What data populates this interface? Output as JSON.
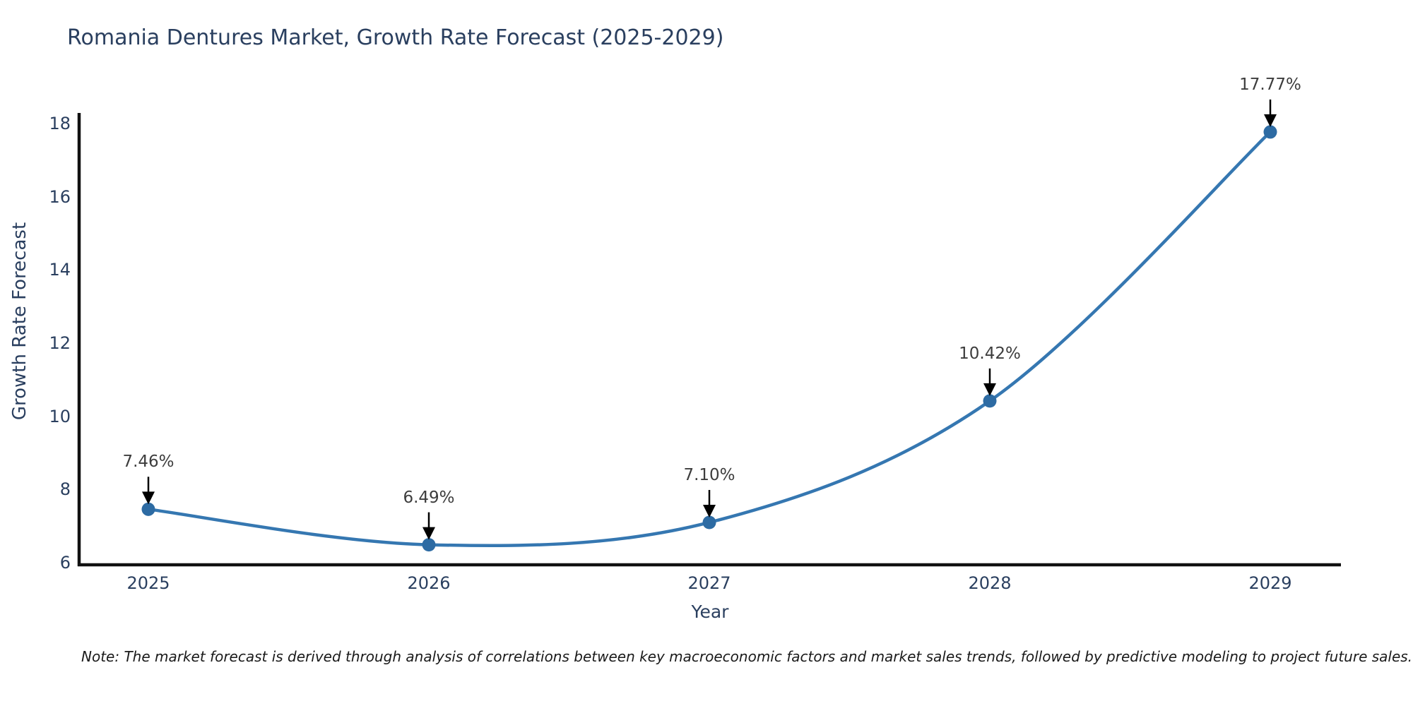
{
  "title": "Romania Dentures Market, Growth Rate Forecast (2025-2029)",
  "footnote": "Note: The market forecast is derived through analysis of correlations between key macroeconomic factors and market sales trends, followed by predictive modeling to project future sales.",
  "chart_data": {
    "type": "line",
    "title": "Romania Dentures Market, Growth Rate Forecast (2025-2029)",
    "xlabel": "Year",
    "ylabel": "Growth Rate Forecast",
    "x": [
      2025,
      2026,
      2027,
      2028,
      2029
    ],
    "x_ticks": [
      "2025",
      "2026",
      "2027",
      "2028",
      "2029"
    ],
    "values": [
      7.46,
      6.49,
      7.1,
      10.42,
      17.77
    ],
    "point_labels": [
      "7.46%",
      "6.49%",
      "7.10%",
      "10.42%",
      "17.77%"
    ],
    "y_ticks": [
      6,
      8,
      10,
      12,
      14,
      16,
      18
    ],
    "ylim": [
      6,
      18
    ],
    "grid": false,
    "legend_position": "none",
    "line_color": "#3577b1",
    "marker_color": "#2d6ba3",
    "arrow_color": "#000000",
    "axis_color": "#111111",
    "text_color": "#2a3f5f"
  }
}
